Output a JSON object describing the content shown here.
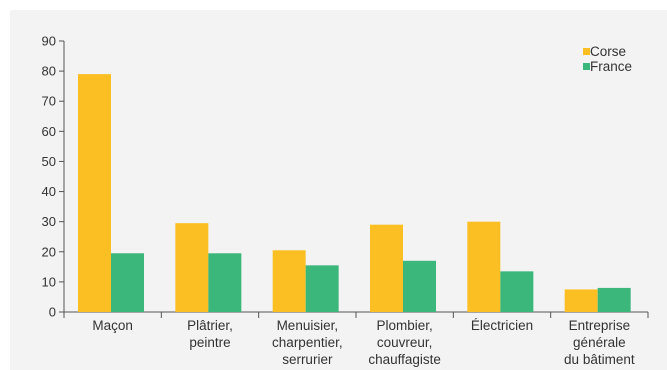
{
  "chart_data": {
    "type": "bar",
    "categories": [
      [
        "Maçon"
      ],
      [
        "Plâtrier,",
        "peintre"
      ],
      [
        "Menuisier,",
        "charpentier,",
        "serrurier"
      ],
      [
        "Plombier,",
        "couvreur,",
        "chauffagiste"
      ],
      [
        "Électricien"
      ],
      [
        "Entreprise",
        "générale",
        "du bâtiment"
      ]
    ],
    "series": [
      {
        "name": "Corse",
        "color": "#fbbf24",
        "values": [
          79,
          29.5,
          20.5,
          29,
          30,
          7.5
        ]
      },
      {
        "name": "France",
        "color": "#3bb77b",
        "values": [
          19.5,
          19.5,
          15.5,
          17,
          13.5,
          8
        ]
      }
    ],
    "ylim": [
      0,
      90
    ],
    "yticks": [
      0,
      10,
      20,
      30,
      40,
      50,
      60,
      70,
      80,
      90
    ],
    "legend_position": "top-right",
    "grid": false
  }
}
